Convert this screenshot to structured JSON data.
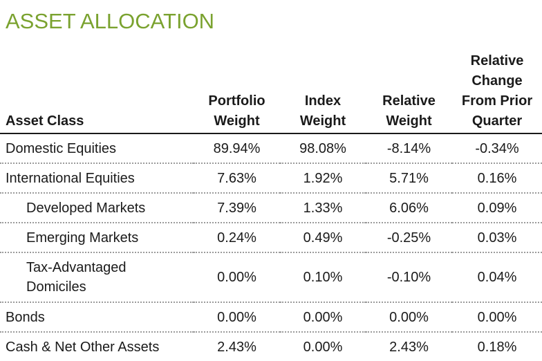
{
  "title": "ASSET ALLOCATION",
  "colors": {
    "title": "#7aa22f",
    "text": "#1a1a1a",
    "divider": "#9a9a9a"
  },
  "columns": [
    {
      "lines": [
        "Asset Class"
      ]
    },
    {
      "lines": [
        "Portfolio",
        "Weight"
      ]
    },
    {
      "lines": [
        "Index",
        "Weight"
      ]
    },
    {
      "lines": [
        "Relative",
        "Weight"
      ]
    },
    {
      "lines": [
        "Relative",
        "Change",
        "From Prior",
        "Quarter"
      ]
    }
  ],
  "rows": [
    {
      "label": "Domestic Equities",
      "portfolio": "89.94%",
      "index": "98.08%",
      "relative": "-8.14%",
      "change": "-0.34%"
    },
    {
      "label": "International Equities",
      "portfolio": "7.63%",
      "index": "1.92%",
      "relative": "5.71%",
      "change": "0.16%"
    },
    {
      "label": "Developed Markets",
      "portfolio": "7.39%",
      "index": "1.33%",
      "relative": "6.06%",
      "change": "0.09%"
    },
    {
      "label": "Emerging Markets",
      "portfolio": "0.24%",
      "index": "0.49%",
      "relative": "-0.25%",
      "change": "0.03%"
    },
    {
      "label_lines": [
        "Tax-Advantaged",
        "Domiciles"
      ],
      "portfolio": "0.00%",
      "index": "0.10%",
      "relative": "-0.10%",
      "change": "0.04%"
    },
    {
      "label": "Bonds",
      "portfolio": "0.00%",
      "index": "0.00%",
      "relative": "0.00%",
      "change": "0.00%"
    },
    {
      "label": "Cash & Net Other Assets",
      "portfolio": "2.43%",
      "index": "0.00%",
      "relative": "2.43%",
      "change": "0.18%"
    }
  ]
}
